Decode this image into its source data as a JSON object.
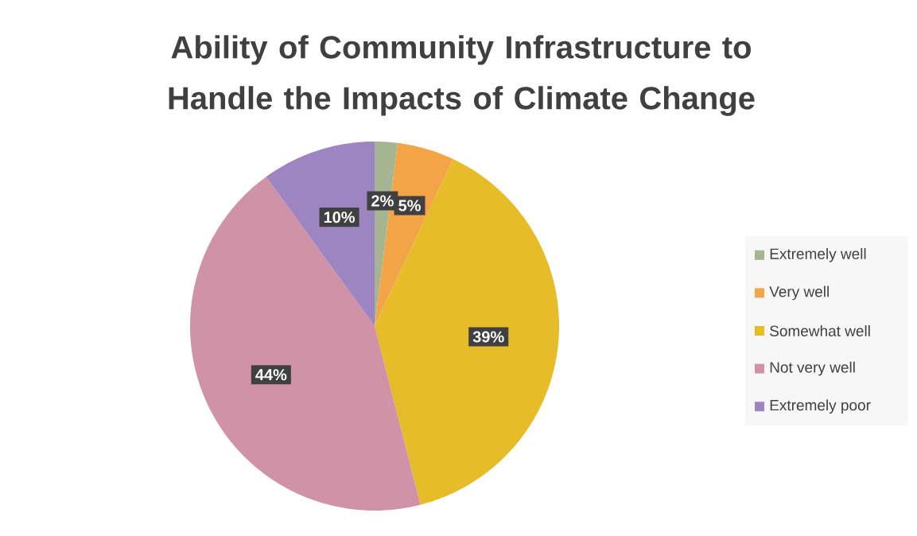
{
  "chart_data": {
    "type": "pie",
    "title": "Ability of Community Infrastructure to Handle the Impacts of Climate Change",
    "categories": [
      "Extremely well",
      "Very well",
      "Somewhat well",
      "Not very well",
      "Extremely poor"
    ],
    "values": [
      2,
      5,
      39,
      44,
      10
    ],
    "colors": [
      "#a5b592",
      "#f3a447",
      "#e7bc29",
      "#d092a7",
      "#9c85c0"
    ],
    "value_labels": [
      "2%",
      "5%",
      "39%",
      "44%",
      "10%"
    ],
    "legend": "right"
  }
}
